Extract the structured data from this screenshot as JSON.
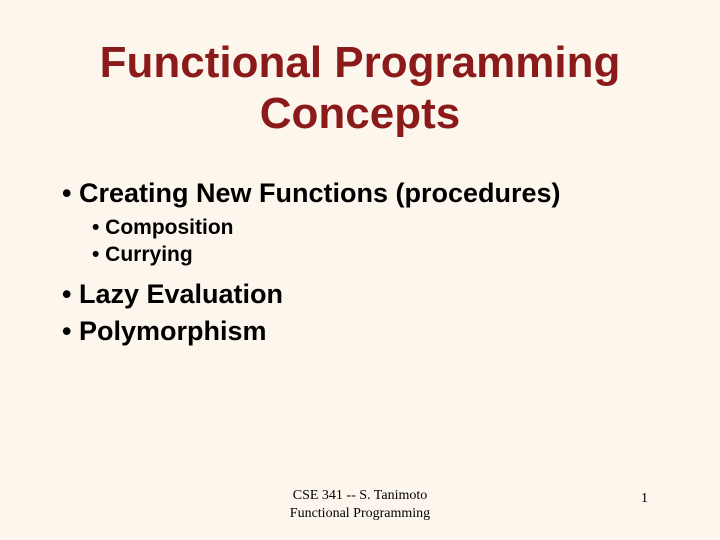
{
  "title": {
    "line1": "Functional Programming",
    "line2": "Concepts",
    "color": "#8b1a1a",
    "fontsize": 44
  },
  "bullets": {
    "item1": "• Creating New Functions (procedures)",
    "sub1": "• Composition",
    "sub2": "• Currying",
    "item2": "• Lazy Evaluation",
    "item3": "• Polymorphism"
  },
  "footer": {
    "line1": "CSE 341 -- S. Tanimoto",
    "line2": "Functional Programming",
    "page_number": "1"
  },
  "styling": {
    "background_color": "#fdf6ed",
    "text_color": "#000000",
    "l1_fontsize": 27,
    "l2_fontsize": 21,
    "footer_fontsize": 14
  }
}
